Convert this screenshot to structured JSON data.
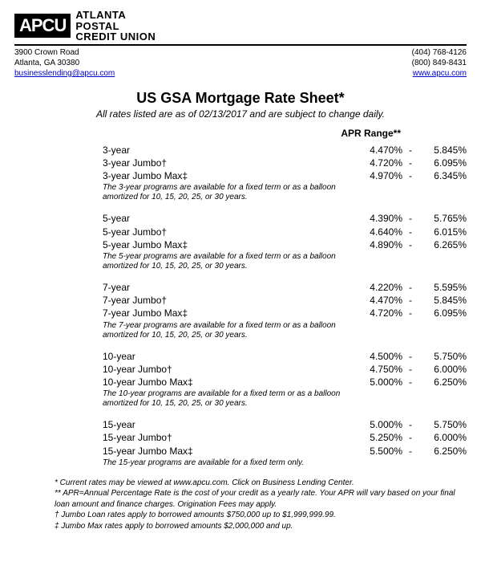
{
  "logo": {
    "badge": "APCU",
    "lines": [
      "ATLANTA",
      "POSTAL",
      "CREDIT UNION"
    ]
  },
  "contact": {
    "address1": "3900 Crown Road",
    "address2": "Atlanta, GA 30380",
    "email": "businesslending@apcu.com",
    "phone1": "(404) 768-4126",
    "phone2": "(800) 849-8431",
    "website": "www.apcu.com"
  },
  "title": "US GSA Mortgage Rate Sheet*",
  "subtitle": "All rates listed are as of 02/13/2017 and are subject to change daily.",
  "apr_header": "APR Range**",
  "groups": [
    {
      "rows": [
        {
          "term": "3-year",
          "low": "4.470%",
          "high": "5.845%"
        },
        {
          "term": "3-year Jumbo†",
          "low": "4.720%",
          "high": "6.095%"
        },
        {
          "term": "3-year Jumbo Max‡",
          "low": "4.970%",
          "high": "6.345%"
        }
      ],
      "note": "The 3-year programs are available for a fixed term or as a balloon amortized for 10, 15, 20, 25, or 30 years."
    },
    {
      "rows": [
        {
          "term": "5-year",
          "low": "4.390%",
          "high": "5.765%"
        },
        {
          "term": "5-year Jumbo†",
          "low": "4.640%",
          "high": "6.015%"
        },
        {
          "term": "5-year Jumbo Max‡",
          "low": "4.890%",
          "high": "6.265%"
        }
      ],
      "note": "The 5-year programs are available for a fixed term or as a balloon amortized for 10, 15, 20, 25, or 30 years."
    },
    {
      "rows": [
        {
          "term": "7-year",
          "low": "4.220%",
          "high": "5.595%"
        },
        {
          "term": "7-year Jumbo†",
          "low": "4.470%",
          "high": "5.845%"
        },
        {
          "term": "7-year Jumbo Max‡",
          "low": "4.720%",
          "high": "6.095%"
        }
      ],
      "note": "The 7-year programs are available for a fixed term or as a balloon amortized for 10, 15, 20, 25, or 30 years."
    },
    {
      "rows": [
        {
          "term": "10-year",
          "low": "4.500%",
          "high": "5.750%"
        },
        {
          "term": "10-year Jumbo†",
          "low": "4.750%",
          "high": "6.000%"
        },
        {
          "term": "10-year Jumbo Max‡",
          "low": "5.000%",
          "high": "6.250%"
        }
      ],
      "note": "The 10-year programs are available for a fixed term or as a balloon amortized for 10, 15, 20, 25, or 30 years."
    },
    {
      "rows": [
        {
          "term": "15-year",
          "low": "5.000%",
          "high": "5.750%"
        },
        {
          "term": "15-year Jumbo†",
          "low": "5.250%",
          "high": "6.000%"
        },
        {
          "term": "15-year Jumbo Max‡",
          "low": "5.500%",
          "high": "6.250%"
        }
      ],
      "note": "The 15-year programs are available for a fixed term only."
    }
  ],
  "footnotes": [
    "* Current rates may be viewed at www.apcu.com.  Click on Business Lending Center.",
    "** APR=Annual Percentage Rate is the cost of your credit as a yearly rate.  Your APR will vary based on your final loan amount and finance charges.  Origination Fees may apply.",
    "† Jumbo Loan rates apply to borrowed amounts $750,000 up to $1,999,999.99.",
    "‡ Jumbo Max rates apply to borrowed amounts $2,000,000 and up."
  ]
}
